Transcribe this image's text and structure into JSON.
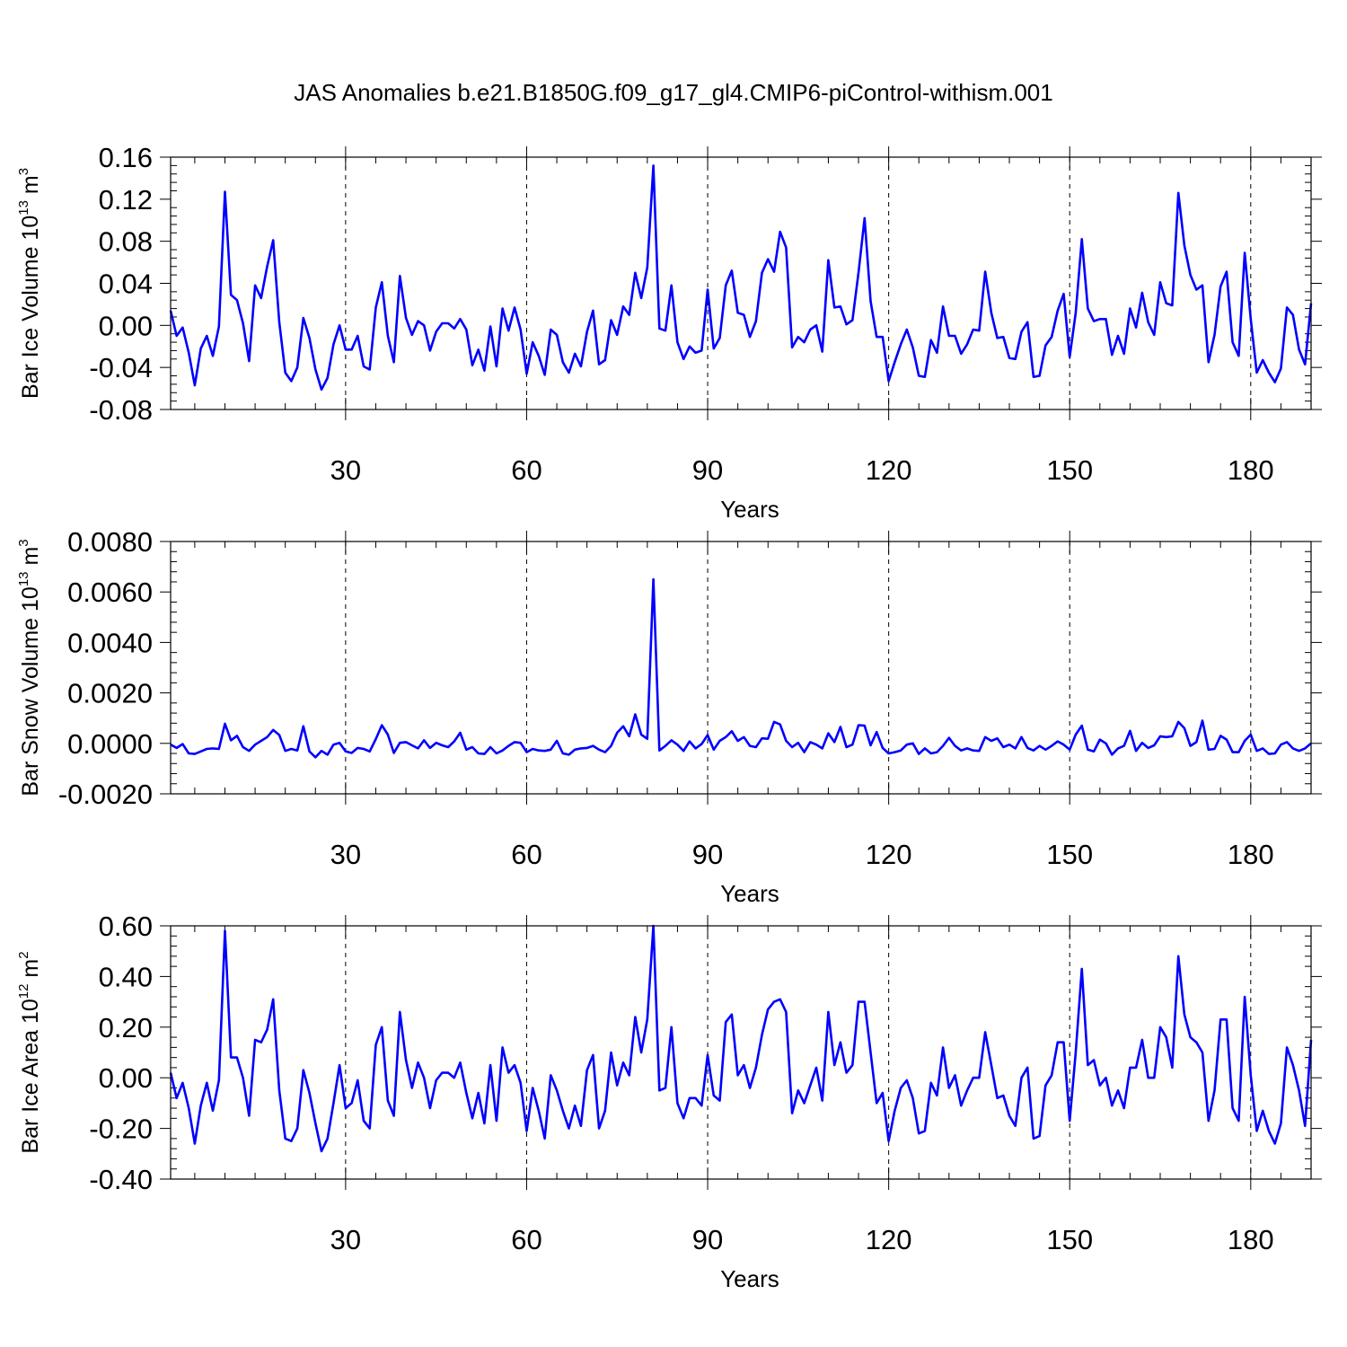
{
  "chart_data": [
    {
      "type": "line",
      "title": "JAS Anomalies b.e21.B1850G.f09_g17_gl4.CMIP6-piControl-withism.001",
      "ylabel": {
        "base": "Bar Ice Volume 10",
        "exp": "13",
        "unit": " m",
        "unit_exp": "3"
      },
      "xlabel": "Years",
      "xlim": [
        1,
        190
      ],
      "ylim": [
        -0.08,
        0.16
      ],
      "yticks": [
        -0.08,
        -0.04,
        0.0,
        0.04,
        0.08,
        0.12,
        0.16
      ],
      "ytick_labels": [
        "-0.08",
        "-0.04",
        "0.00",
        "0.04",
        "0.08",
        "0.12",
        "0.16"
      ],
      "xticks": [
        30,
        60,
        90,
        120,
        150,
        180
      ],
      "xtick_labels": [
        "30",
        "60",
        "90",
        "120",
        "150",
        "180"
      ],
      "grid": "x-dashed",
      "series": [
        {
          "name": "Bar Ice Volume",
          "color": "#0000ff",
          "values": [
            0.014,
            -0.01,
            -0.002,
            -0.026,
            -0.057,
            -0.022,
            -0.01,
            -0.029,
            -0.001,
            0.127,
            0.029,
            0.024,
            0.002,
            -0.034,
            0.038,
            0.026,
            0.056,
            0.081,
            0.003,
            -0.045,
            -0.053,
            -0.04,
            0.007,
            -0.012,
            -0.042,
            -0.061,
            -0.05,
            -0.018,
            0.0,
            -0.023,
            -0.023,
            -0.01,
            -0.039,
            -0.042,
            0.017,
            0.041,
            -0.01,
            -0.035,
            0.047,
            0.007,
            -0.009,
            0.004,
            0.0,
            -0.024,
            -0.006,
            0.002,
            0.002,
            -0.003,
            0.006,
            -0.004,
            -0.038,
            -0.023,
            -0.043,
            -0.001,
            -0.039,
            0.016,
            -0.005,
            0.017,
            -0.004,
            -0.046,
            -0.016,
            -0.029,
            -0.047,
            -0.004,
            -0.009,
            -0.035,
            -0.045,
            -0.027,
            -0.039,
            -0.006,
            0.014,
            -0.037,
            -0.033,
            0.005,
            -0.009,
            0.018,
            0.01,
            0.05,
            0.026,
            0.055,
            0.152,
            -0.003,
            -0.005,
            0.038,
            -0.016,
            -0.032,
            -0.02,
            -0.026,
            -0.024,
            0.034,
            -0.022,
            -0.012,
            0.038,
            0.052,
            0.012,
            0.01,
            -0.011,
            0.004,
            0.05,
            0.063,
            0.051,
            0.089,
            0.074,
            -0.021,
            -0.011,
            -0.016,
            -0.004,
            0.0,
            -0.025,
            0.062,
            0.017,
            0.018,
            0.001,
            0.005,
            0.05,
            0.102,
            0.023,
            -0.011,
            -0.011,
            -0.053,
            -0.035,
            -0.018,
            -0.004,
            -0.021,
            -0.048,
            -0.049,
            -0.014,
            -0.026,
            0.018,
            -0.01,
            -0.01,
            -0.027,
            -0.018,
            -0.004,
            -0.005,
            0.051,
            0.012,
            -0.012,
            -0.011,
            -0.031,
            -0.032,
            -0.006,
            0.003,
            -0.049,
            -0.048,
            -0.019,
            -0.011,
            0.014,
            0.03,
            -0.03,
            0.012,
            0.082,
            0.016,
            0.004,
            0.006,
            0.006,
            -0.028,
            -0.01,
            -0.027,
            0.016,
            -0.002,
            0.031,
            0.003,
            -0.009,
            0.041,
            0.021,
            0.019,
            0.126,
            0.076,
            0.048,
            0.034,
            0.038,
            -0.035,
            -0.009,
            0.037,
            0.051,
            -0.016,
            -0.029,
            0.069,
            0.006,
            -0.045,
            -0.033,
            -0.045,
            -0.054,
            -0.041,
            0.017,
            0.01,
            -0.023,
            -0.037,
            0.021
          ]
        }
      ]
    },
    {
      "type": "line",
      "ylabel": {
        "base": "Bar Snow Volume 10",
        "exp": "13",
        "unit": " m",
        "unit_exp": "3"
      },
      "xlabel": "Years",
      "xlim": [
        1,
        190
      ],
      "ylim": [
        -0.002,
        0.008
      ],
      "yticks": [
        -0.002,
        0.0,
        0.002,
        0.004,
        0.006,
        0.008
      ],
      "ytick_labels": [
        "-0.0020",
        "0.0000",
        "0.0020",
        "0.0040",
        "0.0060",
        "0.0080"
      ],
      "xticks": [
        30,
        60,
        90,
        120,
        150,
        180
      ],
      "xtick_labels": [
        "30",
        "60",
        "90",
        "120",
        "150",
        "180"
      ],
      "grid": "x-dashed",
      "series": [
        {
          "name": "Bar Snow Volume",
          "color": "#0000ff",
          "values": [
            -5e-05,
            -0.00018,
            -3e-05,
            -0.0004,
            -0.00042,
            -0.00032,
            -0.00022,
            -0.0002,
            -0.00022,
            0.00078,
            0.00012,
            0.0003,
            -0.00015,
            -0.0003,
            -5e-05,
            0.0001,
            0.00025,
            0.00053,
            0.00033,
            -0.0003,
            -0.00022,
            -0.00028,
            0.00068,
            -0.00032,
            -0.00055,
            -0.0003,
            -0.00045,
            -5e-05,
            2e-05,
            -0.00032,
            -0.00038,
            -0.00018,
            -0.00022,
            -0.00032,
            0.00017,
            0.00072,
            0.00035,
            -0.00038,
            2e-05,
            5e-05,
            -8e-05,
            -0.0002,
            0.00012,
            -0.00018,
            2e-05,
            -8e-05,
            -0.00015,
            8e-05,
            0.00042,
            -0.00025,
            -0.00015,
            -0.0004,
            -0.00042,
            -0.00015,
            -0.0004,
            -0.00028,
            -0.0001,
            5e-05,
            2e-05,
            -0.00035,
            -0.00022,
            -0.00028,
            -0.0003,
            -0.00025,
            0.0001,
            -0.0004,
            -0.00045,
            -0.00025,
            -0.0002,
            -0.00018,
            -0.0001,
            -0.00025,
            -0.00035,
            -0.0001,
            0.00042,
            0.00068,
            0.00028,
            0.00115,
            0.00035,
            0.00018,
            0.0065,
            -0.00028,
            -0.0001,
            0.00012,
            -5e-05,
            -0.0003,
            8e-05,
            -0.0002,
            -3e-05,
            0.00033,
            -0.00025,
            0.0001,
            0.00025,
            0.00048,
            0.0001,
            0.00025,
            -0.0001,
            -0.00015,
            0.0002,
            0.00018,
            0.00085,
            0.00075,
            0.0001,
            -0.00015,
            2e-05,
            -0.00035,
            5e-05,
            -5e-05,
            -0.0002,
            0.0004,
            5e-05,
            0.00065,
            -0.00015,
            -5e-05,
            0.00072,
            0.0007,
            -8e-05,
            0.00045,
            -0.00018,
            -0.0004,
            -0.00035,
            -0.00028,
            -5e-05,
            0.0,
            -0.00042,
            -0.0002,
            -0.0004,
            -0.00035,
            -0.0001,
            0.00022,
            -0.0001,
            -0.00028,
            -0.0002,
            -0.00028,
            -0.0003,
            0.00025,
            0.0001,
            0.0002,
            -0.00015,
            -5e-05,
            -0.0002,
            0.00025,
            -0.00018,
            -0.00028,
            -0.0001,
            -0.00025,
            -0.0001,
            8e-05,
            -5e-05,
            -0.00025,
            0.00035,
            0.0007,
            -0.00025,
            -0.00032,
            0.00015,
            0.0,
            -0.00045,
            -0.0002,
            -0.0001,
            0.0005,
            -0.0003,
            2e-05,
            -0.00018,
            -8e-05,
            0.00028,
            0.00025,
            0.00028,
            0.00085,
            0.0006,
            -0.0001,
            5e-05,
            0.0009,
            -0.00025,
            -0.00022,
            0.0003,
            0.00015,
            -0.00035,
            -0.00035,
            0.0001,
            0.00035,
            -0.0003,
            -0.0002,
            -0.00042,
            -0.0004,
            -5e-05,
            5e-05,
            -0.0002,
            -0.0003,
            -0.0002,
            0.0
          ]
        }
      ]
    },
    {
      "type": "line",
      "ylabel": {
        "base": "Bar Ice Area 10",
        "exp": "12",
        "unit": " m",
        "unit_exp": "2"
      },
      "xlabel": "Years",
      "xlim": [
        1,
        190
      ],
      "ylim": [
        -0.4,
        0.6
      ],
      "yticks": [
        -0.4,
        -0.2,
        0.0,
        0.2,
        0.4,
        0.6
      ],
      "ytick_labels": [
        "-0.40",
        "-0.20",
        "0.00",
        "0.20",
        "0.40",
        "0.60"
      ],
      "xticks": [
        30,
        60,
        90,
        120,
        150,
        180
      ],
      "xtick_labels": [
        "30",
        "60",
        "90",
        "120",
        "150",
        "180"
      ],
      "grid": "x-dashed",
      "series": [
        {
          "name": "Bar Ice Area",
          "color": "#0000ff",
          "values": [
            0.02,
            -0.08,
            -0.02,
            -0.12,
            -0.26,
            -0.11,
            -0.02,
            -0.13,
            -0.01,
            0.58,
            0.08,
            0.08,
            0.0,
            -0.15,
            0.15,
            0.14,
            0.19,
            0.31,
            -0.05,
            -0.24,
            -0.25,
            -0.2,
            0.03,
            -0.06,
            -0.18,
            -0.29,
            -0.24,
            -0.1,
            0.05,
            -0.12,
            -0.1,
            -0.01,
            -0.17,
            -0.2,
            0.13,
            0.2,
            -0.09,
            -0.15,
            0.26,
            0.07,
            -0.04,
            0.06,
            0.0,
            -0.12,
            -0.01,
            0.02,
            0.02,
            0.0,
            0.06,
            -0.06,
            -0.16,
            -0.06,
            -0.18,
            0.05,
            -0.17,
            0.12,
            0.02,
            0.05,
            -0.02,
            -0.21,
            -0.04,
            -0.13,
            -0.24,
            0.01,
            -0.05,
            -0.13,
            -0.2,
            -0.11,
            -0.19,
            0.03,
            0.09,
            -0.2,
            -0.13,
            0.1,
            -0.03,
            0.06,
            0.01,
            0.24,
            0.1,
            0.23,
            0.6,
            -0.05,
            -0.04,
            0.2,
            -0.1,
            -0.16,
            -0.08,
            -0.08,
            -0.11,
            0.09,
            -0.07,
            -0.09,
            0.22,
            0.25,
            0.01,
            0.05,
            -0.04,
            0.04,
            0.17,
            0.27,
            0.3,
            0.31,
            0.26,
            -0.14,
            -0.05,
            -0.1,
            -0.03,
            0.04,
            -0.09,
            0.26,
            0.05,
            0.14,
            0.02,
            0.05,
            0.3,
            0.3,
            0.1,
            -0.1,
            -0.06,
            -0.25,
            -0.13,
            -0.04,
            -0.01,
            -0.08,
            -0.22,
            -0.21,
            -0.02,
            -0.07,
            0.12,
            -0.04,
            0.01,
            -0.11,
            -0.05,
            0.0,
            0.0,
            0.18,
            0.05,
            -0.08,
            -0.07,
            -0.15,
            -0.19,
            0.0,
            0.04,
            -0.24,
            -0.23,
            -0.03,
            0.01,
            0.14,
            0.14,
            -0.17,
            0.1,
            0.43,
            0.05,
            0.07,
            -0.03,
            0.0,
            -0.11,
            -0.05,
            -0.12,
            0.04,
            0.04,
            0.15,
            0.0,
            0.0,
            0.2,
            0.16,
            0.04,
            0.48,
            0.25,
            0.16,
            0.14,
            0.1,
            -0.17,
            -0.05,
            0.23,
            0.23,
            -0.12,
            -0.17,
            0.32,
            0.01,
            -0.21,
            -0.13,
            -0.21,
            -0.26,
            -0.18,
            0.12,
            0.05,
            -0.05,
            -0.19,
            0.15
          ]
        }
      ]
    }
  ]
}
